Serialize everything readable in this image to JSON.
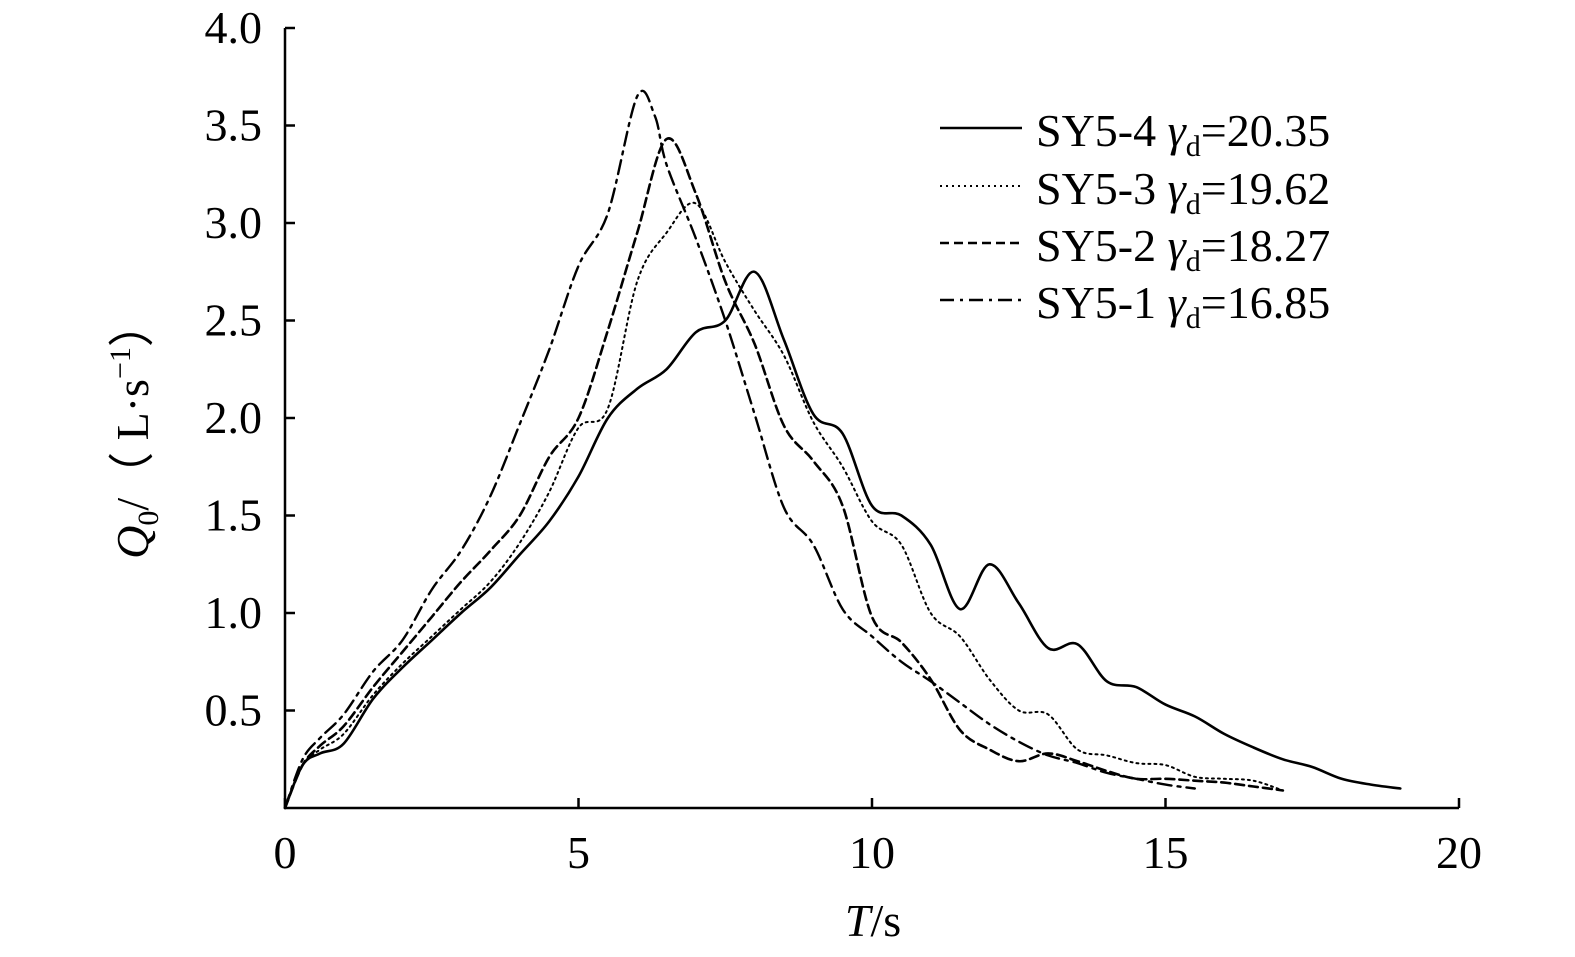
{
  "chart_data": {
    "type": "line",
    "xlabel": {
      "main": "T",
      "unit": "/s"
    },
    "ylabel": {
      "main": "Q",
      "sub": "0",
      "unit_prefix": "/（ L·s",
      "sup": "−1",
      "unit_suffix": "）"
    },
    "xlim": [
      0,
      20
    ],
    "ylim": [
      0,
      4.0
    ],
    "xticks": [
      0,
      5,
      10,
      15,
      20
    ],
    "yticks": [
      0.5,
      1.0,
      1.5,
      2.0,
      2.5,
      3.0,
      3.5,
      4.0
    ],
    "xtick_labels": [
      "0",
      "5",
      "10",
      "15",
      "20"
    ],
    "ytick_labels": [
      "0.5",
      "1.0",
      "1.5",
      "2.0",
      "2.5",
      "3.0",
      "3.5",
      "4.0"
    ],
    "grid": false,
    "legend_position": "top-right",
    "series": [
      {
        "name": "SY5-4",
        "gamma_symbol": "γ",
        "gamma_sub": "d",
        "gamma_value": "=20.35",
        "style": "solid",
        "x": [
          0,
          0.3,
          0.6,
          1.0,
          1.5,
          2.0,
          2.5,
          3.0,
          3.5,
          4.0,
          4.5,
          5.0,
          5.5,
          6.0,
          6.5,
          7.0,
          7.5,
          8.0,
          8.5,
          9.0,
          9.5,
          10.0,
          10.5,
          11.0,
          11.5,
          12.0,
          12.5,
          13.0,
          13.5,
          14.0,
          14.5,
          15.0,
          15.5,
          16.0,
          16.5,
          17.0,
          17.5,
          18.0,
          18.5,
          19.0
        ],
        "y": [
          0,
          0.22,
          0.28,
          0.33,
          0.56,
          0.72,
          0.86,
          1.0,
          1.13,
          1.3,
          1.47,
          1.7,
          2.0,
          2.15,
          2.25,
          2.44,
          2.5,
          2.75,
          2.4,
          2.02,
          1.92,
          1.55,
          1.5,
          1.35,
          1.02,
          1.25,
          1.05,
          0.82,
          0.84,
          0.65,
          0.62,
          0.53,
          0.47,
          0.38,
          0.31,
          0.25,
          0.21,
          0.15,
          0.12,
          0.1
        ]
      },
      {
        "name": "SY5-3",
        "gamma_symbol": "γ",
        "gamma_sub": "d",
        "gamma_value": "=19.62",
        "style": "dotted",
        "x": [
          0,
          0.3,
          0.6,
          1.0,
          1.5,
          2.0,
          2.5,
          3.0,
          3.5,
          4.0,
          4.5,
          5.0,
          5.5,
          6.0,
          6.5,
          7.0,
          7.5,
          8.0,
          8.5,
          9.0,
          9.5,
          10.0,
          10.5,
          11.0,
          11.5,
          12.0,
          12.5,
          13.0,
          13.5,
          14.0,
          14.5,
          15.0,
          15.5,
          16.0,
          16.5,
          17.0
        ],
        "y": [
          0,
          0.22,
          0.3,
          0.38,
          0.58,
          0.74,
          0.88,
          1.02,
          1.16,
          1.36,
          1.62,
          1.95,
          2.05,
          2.7,
          2.95,
          3.1,
          2.8,
          2.55,
          2.32,
          1.98,
          1.75,
          1.47,
          1.35,
          1.0,
          0.88,
          0.66,
          0.5,
          0.48,
          0.3,
          0.27,
          0.23,
          0.22,
          0.16,
          0.15,
          0.14,
          0.09
        ]
      },
      {
        "name": "SY5-2",
        "gamma_symbol": "γ",
        "gamma_sub": "d",
        "gamma_value": "=18.27",
        "style": "dashed",
        "x": [
          0,
          0.3,
          0.6,
          1.0,
          1.5,
          2.0,
          2.5,
          3.0,
          3.5,
          4.0,
          4.5,
          5.0,
          5.5,
          6.0,
          6.5,
          7.0,
          7.5,
          8.0,
          8.5,
          9.0,
          9.5,
          10.0,
          10.5,
          11.0,
          11.5,
          12.0,
          12.5,
          13.0,
          13.5,
          14.0,
          14.5,
          15.0,
          15.5,
          16.0,
          16.5,
          17.0
        ],
        "y": [
          0,
          0.22,
          0.32,
          0.42,
          0.62,
          0.8,
          0.98,
          1.16,
          1.32,
          1.5,
          1.8,
          2.0,
          2.45,
          2.95,
          3.43,
          3.15,
          2.7,
          2.38,
          1.96,
          1.78,
          1.55,
          0.98,
          0.85,
          0.66,
          0.4,
          0.3,
          0.24,
          0.28,
          0.24,
          0.19,
          0.15,
          0.15,
          0.14,
          0.13,
          0.11,
          0.09
        ]
      },
      {
        "name": "SY5-1",
        "gamma_symbol": "γ",
        "gamma_sub": "d",
        "gamma_value": "=16.85",
        "style": "dashdot",
        "x": [
          0,
          0.3,
          0.6,
          1.0,
          1.5,
          2.0,
          2.5,
          3.0,
          3.5,
          4.0,
          4.5,
          5.0,
          5.5,
          6.0,
          6.3,
          6.5,
          7.0,
          7.5,
          8.0,
          8.5,
          9.0,
          9.5,
          10.0,
          10.5,
          11.0,
          11.5,
          12.0,
          12.5,
          13.0,
          13.5,
          14.0,
          14.5,
          15.0,
          15.5
        ],
        "y": [
          0,
          0.25,
          0.36,
          0.48,
          0.7,
          0.86,
          1.12,
          1.32,
          1.6,
          1.97,
          2.35,
          2.78,
          3.05,
          3.65,
          3.55,
          3.3,
          2.92,
          2.5,
          2.02,
          1.54,
          1.35,
          1.02,
          0.88,
          0.75,
          0.65,
          0.54,
          0.43,
          0.34,
          0.27,
          0.23,
          0.18,
          0.15,
          0.12,
          0.1
        ]
      }
    ]
  }
}
